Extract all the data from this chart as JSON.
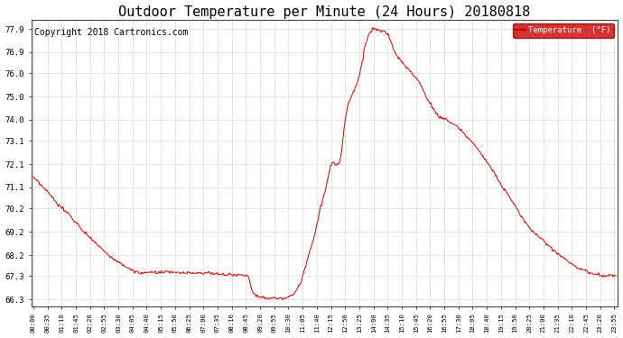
{
  "title": "Outdoor Temperature per Minute (24 Hours) 20180818",
  "copyright": "Copyright 2018 Cartronics.com",
  "legend_label": "Temperature  (°F)",
  "legend_bg": "#cc0000",
  "legend_text_color": "#ffffff",
  "line_color": "#cc0000",
  "bg_color": "#ffffff",
  "grid_color": "#aaaaaa",
  "yticks": [
    66.3,
    67.3,
    68.2,
    69.2,
    70.2,
    71.1,
    72.1,
    73.1,
    74.0,
    75.0,
    76.0,
    76.9,
    77.9
  ],
  "xtick_interval_minutes": 35,
  "total_minutes": 1440,
  "y_min": 66.0,
  "y_max": 78.3,
  "title_fontsize": 11,
  "copyright_fontsize": 7,
  "key_times": [
    0,
    30,
    60,
    90,
    120,
    150,
    180,
    210,
    240,
    255,
    265,
    270,
    275,
    280,
    290,
    300,
    310,
    320,
    330,
    345,
    355,
    360,
    370,
    380,
    390,
    400,
    410,
    420,
    430,
    440,
    450,
    455,
    460,
    465,
    470,
    475,
    480,
    490,
    500,
    510,
    520,
    530,
    540,
    550,
    560,
    570,
    575,
    580,
    585,
    590,
    595,
    600,
    610,
    620,
    630,
    640,
    650,
    660,
    665,
    670,
    675,
    680,
    685,
    690,
    695,
    700,
    705,
    710,
    715,
    720,
    725,
    730,
    735,
    740,
    745,
    750,
    755,
    760,
    765,
    770,
    775,
    780,
    785,
    790,
    800,
    810,
    820,
    830,
    840,
    850,
    860,
    870,
    880,
    890,
    900,
    910,
    920,
    930,
    940,
    950,
    960,
    970,
    980,
    990,
    1000,
    1020,
    1040,
    1060,
    1080,
    1100,
    1120,
    1140,
    1160,
    1180,
    1200,
    1220,
    1240,
    1260,
    1280,
    1300,
    1320,
    1340,
    1360,
    1380,
    1400,
    1420,
    1439
  ],
  "key_temps": [
    71.5,
    71.0,
    70.4,
    69.9,
    69.3,
    68.8,
    68.3,
    67.9,
    67.6,
    67.45,
    67.42,
    67.42,
    67.43,
    67.44,
    67.45,
    67.45,
    67.46,
    67.46,
    67.46,
    67.45,
    67.44,
    67.44,
    67.43,
    67.43,
    67.43,
    67.43,
    67.43,
    67.43,
    67.42,
    67.41,
    67.4,
    67.39,
    67.39,
    67.38,
    67.37,
    67.36,
    67.36,
    67.35,
    67.35,
    67.34,
    67.33,
    67.32,
    66.7,
    66.5,
    66.42,
    66.38,
    66.36,
    66.35,
    66.34,
    66.34,
    66.33,
    66.33,
    66.34,
    66.35,
    66.4,
    66.5,
    66.7,
    67.0,
    67.3,
    67.6,
    67.9,
    68.2,
    68.5,
    68.8,
    69.1,
    69.5,
    69.9,
    70.3,
    70.6,
    70.9,
    71.3,
    71.7,
    72.1,
    72.15,
    72.12,
    72.1,
    72.15,
    72.5,
    73.2,
    74.0,
    74.5,
    74.8,
    75.0,
    75.2,
    75.6,
    76.3,
    77.2,
    77.7,
    77.9,
    77.85,
    77.8,
    77.75,
    77.5,
    77.0,
    76.7,
    76.5,
    76.3,
    76.1,
    75.9,
    75.7,
    75.4,
    75.0,
    74.7,
    74.4,
    74.2,
    74.0,
    73.8,
    73.5,
    73.1,
    72.7,
    72.2,
    71.7,
    71.1,
    70.6,
    70.0,
    69.5,
    69.1,
    68.8,
    68.5,
    68.2,
    67.95,
    67.7,
    67.55,
    67.42,
    67.35,
    67.32,
    67.3
  ]
}
